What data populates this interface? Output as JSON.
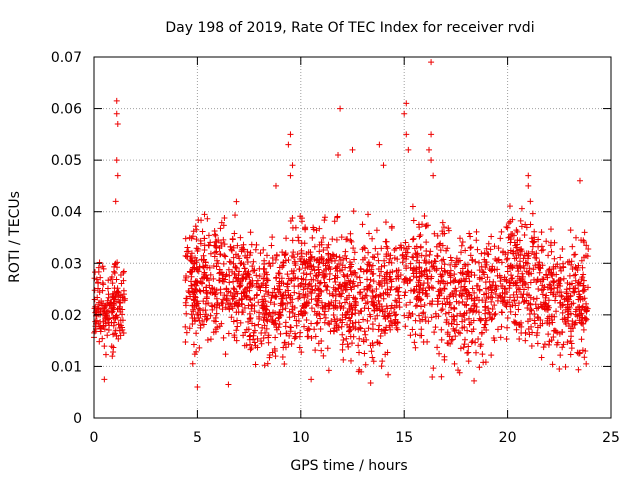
{
  "chart_data": {
    "type": "scatter",
    "title": "Day 198 of 2019, Rate Of TEC Index for receiver rvdi",
    "xlabel": "GPS time / hours",
    "ylabel": "ROTI / TECUs",
    "xlim": [
      0,
      25
    ],
    "ylim": [
      0,
      0.07
    ],
    "xticks": [
      0,
      5,
      10,
      15,
      20,
      25
    ],
    "xtick_labels": [
      "0",
      "5",
      "10",
      "15",
      "20",
      "25"
    ],
    "yticks": [
      0,
      0.01,
      0.02,
      0.03,
      0.04,
      0.05,
      0.06,
      0.07
    ],
    "ytick_labels": [
      "0",
      "0.01",
      "0.02",
      "0.03",
      "0.04",
      "0.05",
      "0.06",
      "0.07"
    ],
    "grid": true,
    "marker": "plus",
    "marker_color": "#ee0000",
    "series": [
      {
        "name": "ROTI",
        "segments": [
          {
            "x_start": 0.0,
            "x_end": 1.5,
            "y_min": 0.008,
            "y_max": 0.033
          },
          {
            "x_start": 4.4,
            "x_end": 23.9,
            "y_min": 0.006,
            "y_max": 0.044
          }
        ],
        "points": [
          {
            "x": 0.5,
            "y": 0.0075
          },
          {
            "x": 1.1,
            "y": 0.0615
          },
          {
            "x": 1.1,
            "y": 0.059
          },
          {
            "x": 1.15,
            "y": 0.057
          },
          {
            "x": 1.1,
            "y": 0.05
          },
          {
            "x": 1.15,
            "y": 0.047
          },
          {
            "x": 1.05,
            "y": 0.042
          },
          {
            "x": 9.5,
            "y": 0.055
          },
          {
            "x": 9.4,
            "y": 0.053
          },
          {
            "x": 9.6,
            "y": 0.049
          },
          {
            "x": 9.5,
            "y": 0.047
          },
          {
            "x": 8.8,
            "y": 0.045
          },
          {
            "x": 11.9,
            "y": 0.06
          },
          {
            "x": 11.8,
            "y": 0.051
          },
          {
            "x": 12.5,
            "y": 0.052
          },
          {
            "x": 13.8,
            "y": 0.053
          },
          {
            "x": 14.0,
            "y": 0.049
          },
          {
            "x": 15.1,
            "y": 0.061
          },
          {
            "x": 15.0,
            "y": 0.059
          },
          {
            "x": 15.1,
            "y": 0.055
          },
          {
            "x": 15.2,
            "y": 0.052
          },
          {
            "x": 16.3,
            "y": 0.069
          },
          {
            "x": 16.3,
            "y": 0.055
          },
          {
            "x": 16.2,
            "y": 0.052
          },
          {
            "x": 16.3,
            "y": 0.05
          },
          {
            "x": 16.4,
            "y": 0.047
          },
          {
            "x": 21.0,
            "y": 0.047
          },
          {
            "x": 21.0,
            "y": 0.045
          },
          {
            "x": 21.1,
            "y": 0.042
          },
          {
            "x": 23.5,
            "y": 0.046
          },
          {
            "x": 5.0,
            "y": 0.006
          },
          {
            "x": 6.5,
            "y": 0.0065
          },
          {
            "x": 10.5,
            "y": 0.0075
          },
          {
            "x": 12.8,
            "y": 0.009
          },
          {
            "x": 16.8,
            "y": 0.008
          },
          {
            "x": 22.5,
            "y": 0.0095
          },
          {
            "x": 23.8,
            "y": 0.0105
          }
        ]
      }
    ]
  }
}
